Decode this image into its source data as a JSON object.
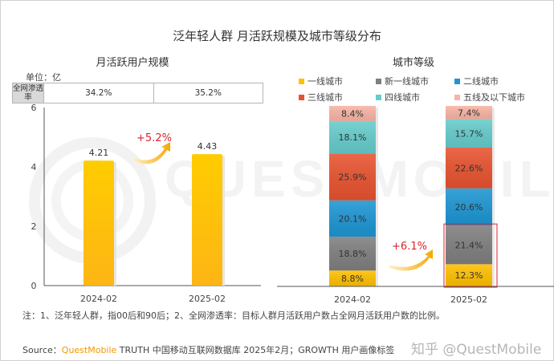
{
  "title": "泛年轻人群 月活跃规模及城市等级分布",
  "left_panel": {
    "subtitle": "月活跃用户规模",
    "unit_label": "单位：亿",
    "penetration": {
      "header": "全网渗透率",
      "values": [
        "34.2%",
        "35.2%"
      ]
    },
    "growth_label": "+5.2%"
  },
  "right_panel": {
    "subtitle": "城市等级",
    "growth_label": "+6.1%"
  },
  "note": "注：1、泛年轻人群，指00后和90后；2、全网渗透率：目标人群月活跃用户数占全网月活跃用户数的比例。",
  "source": {
    "prefix": "Source：",
    "brand": "QuestMobile",
    "text": " TRUTH 中国移动互联网数据库 2025年2月；GROWTH 用户画像标签",
    "watermark": "知乎 @QuestMobile"
  },
  "colors": {
    "bar": "#ffc000",
    "growth_text": "#d9232e",
    "highlight_box": "#d9232e",
    "brand": "#f39800"
  },
  "chart_data": [
    {
      "type": "bar",
      "title": "月活跃用户规模",
      "ylabel": "单位：亿",
      "categories": [
        "2024-02",
        "2025-02"
      ],
      "values": [
        4.21,
        4.43
      ],
      "value_labels": [
        "4.21",
        "4.43"
      ],
      "ylim": [
        0,
        6
      ],
      "yticks": [
        0,
        2,
        4,
        6
      ],
      "ytick_labels": [
        "0",
        "2",
        "4",
        "6"
      ],
      "annotation": "+5.2%"
    },
    {
      "type": "bar",
      "stacked": true,
      "title": "城市等级",
      "categories": [
        "2024-02",
        "2025-02"
      ],
      "series": [
        {
          "name": "一线城市",
          "color": "#ffc000",
          "values": [
            8.8,
            12.3
          ]
        },
        {
          "name": "新一线城市",
          "color": "#7f7f7f",
          "values": [
            18.8,
            21.4
          ]
        },
        {
          "name": "二线城市",
          "color": "#1d96d3",
          "values": [
            20.1,
            20.6
          ]
        },
        {
          "name": "三线城市",
          "color": "#e8532f",
          "values": [
            25.9,
            22.6
          ]
        },
        {
          "name": "四线城市",
          "color": "#66cccc",
          "values": [
            18.1,
            15.7
          ]
        },
        {
          "name": "五线及以下城市",
          "color": "#f8b4a4",
          "values": [
            8.4,
            7.4
          ]
        }
      ],
      "value_labels": [
        [
          "8.8%",
          "18.8%",
          "20.1%",
          "25.9%",
          "18.1%",
          "8.4%"
        ],
        [
          "12.3%",
          "21.4%",
          "20.6%",
          "22.6%",
          "15.7%",
          "7.4%"
        ]
      ],
      "legend_position": "top",
      "annotation": "+6.1%"
    }
  ]
}
